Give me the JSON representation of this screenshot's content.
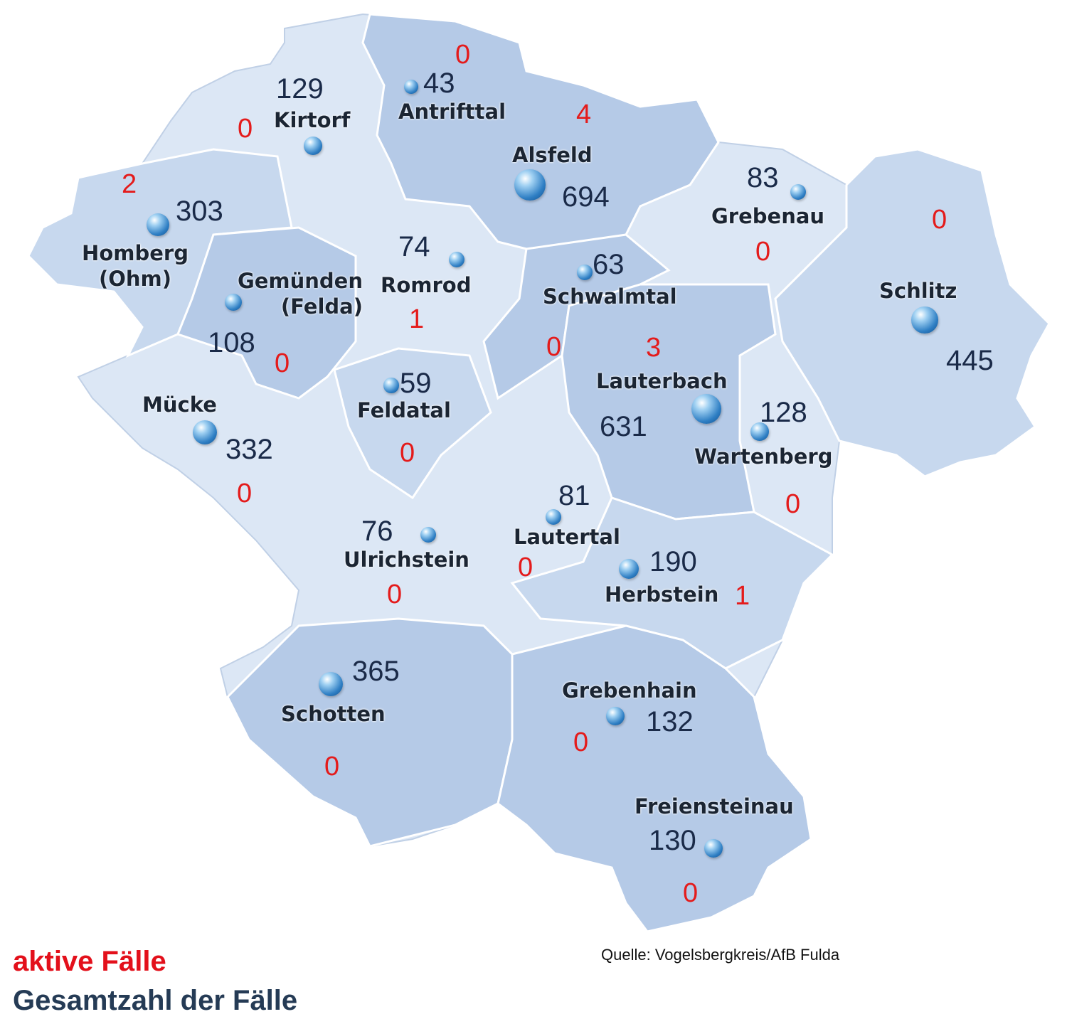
{
  "legend": {
    "active_label": "aktive Fälle",
    "total_label": "Gesamtzahl der Fälle",
    "active_color": "#e3101b",
    "total_color": "#253b55"
  },
  "source": "Quelle: Vogelsbergkreis/AfB Fulda",
  "map_colors": {
    "light": "#dce7f5",
    "mid": "#c7d8ee",
    "dark": "#b5cae7",
    "border": "#ffffff"
  },
  "municipalities": [
    {
      "name": "Kirtorf",
      "total": "129",
      "active": "0"
    },
    {
      "name": "Antrifttal",
      "total": "43",
      "active": "0"
    },
    {
      "name": "Alsfeld",
      "total": "694",
      "active": "4"
    },
    {
      "name": "Homberg (Ohm)",
      "total": "303",
      "active": "2"
    },
    {
      "name": "Gemünden (Felda)",
      "total": "108",
      "active": "0"
    },
    {
      "name": "Romrod",
      "total": "74",
      "active": "1"
    },
    {
      "name": "Schwalmtal",
      "total": "63",
      "active": "0"
    },
    {
      "name": "Grebenau",
      "total": "83",
      "active": "0"
    },
    {
      "name": "Schlitz",
      "total": "445",
      "active": "0"
    },
    {
      "name": "Lauterbach",
      "total": "631",
      "active": "3"
    },
    {
      "name": "Wartenberg",
      "total": "128",
      "active": "0"
    },
    {
      "name": "Feldatal",
      "total": "59",
      "active": "0"
    },
    {
      "name": "Mücke",
      "total": "332",
      "active": "0"
    },
    {
      "name": "Lautertal",
      "total": "81",
      "active": "0"
    },
    {
      "name": "Ulrichstein",
      "total": "76",
      "active": "0"
    },
    {
      "name": "Herbstein",
      "total": "190",
      "active": "1"
    },
    {
      "name": "Schotten",
      "total": "365",
      "active": "0"
    },
    {
      "name": "Grebenhain",
      "total": "132",
      "active": "0"
    },
    {
      "name": "Freiensteinau",
      "total": "130",
      "active": "0"
    }
  ]
}
